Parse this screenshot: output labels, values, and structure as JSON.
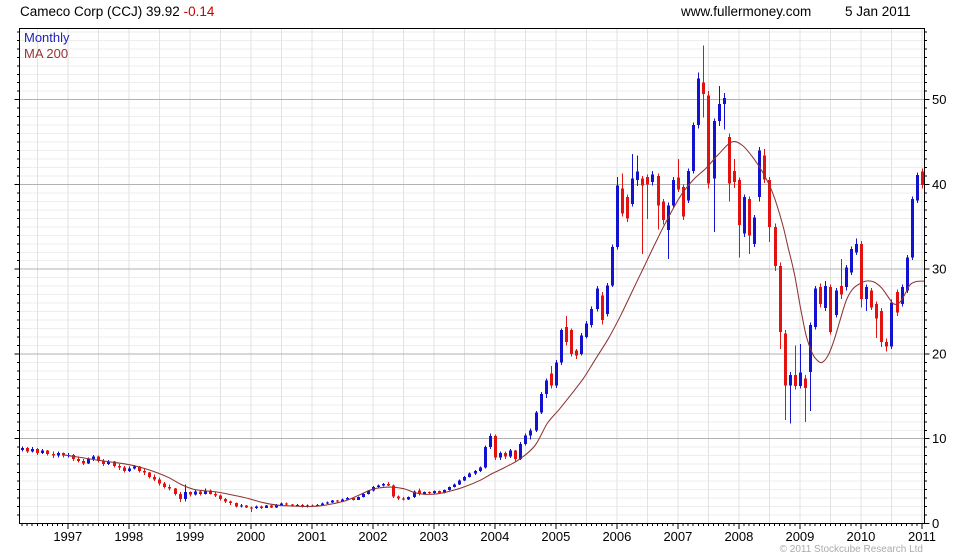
{
  "header": {
    "title": "Cameco Corp (CCJ) 39.92",
    "change": "-0.14",
    "site": "www.fullermoney.com",
    "date": "5 Jan 2011"
  },
  "legend": {
    "series1": "Monthly",
    "series2": "MA 200"
  },
  "footer": {
    "copyright": "© 2011 Stockcube Research Ltd"
  },
  "colors": {
    "up": "#1212d0",
    "down": "#e41111",
    "ma": "#8d3535",
    "grid_minor": "#ededed",
    "grid_vert": "#e2e2e2",
    "grid_major": "#b2b2b2",
    "border": "#000000",
    "change": "#cc0000",
    "text": "#000000",
    "copyright": "#ababab"
  },
  "chart_data": {
    "type": "candlestick",
    "title": "Cameco Corp (CCJ)",
    "timeframe": "Monthly",
    "overlay": "MA 200",
    "last_price": 39.92,
    "change": -0.14,
    "date": "5 Jan 2011",
    "start_month": "1996-04",
    "end_month": "2011-01",
    "ylim": [
      0,
      58.4
    ],
    "yticks": [
      0,
      10,
      20,
      30,
      40,
      50
    ],
    "xticks_years": [
      1997,
      1998,
      1999,
      2000,
      2001,
      2002,
      2003,
      2004,
      2005,
      2006,
      2007,
      2008,
      2009,
      2010,
      2011
    ],
    "grid": {
      "minor_h_step": 1,
      "major_h_step": 10,
      "vertical_every_months": 6
    },
    "ohlc": [
      [
        8.7,
        9.1,
        8.5,
        8.9
      ],
      [
        8.9,
        9.0,
        8.3,
        8.5
      ],
      [
        8.5,
        9.0,
        8.4,
        8.8
      ],
      [
        8.8,
        8.9,
        8.1,
        8.3
      ],
      [
        8.3,
        8.8,
        8.2,
        8.6
      ],
      [
        8.6,
        8.7,
        8.0,
        8.2
      ],
      [
        8.2,
        8.5,
        7.7,
        8.0
      ],
      [
        8.0,
        8.5,
        7.8,
        8.3
      ],
      [
        8.3,
        8.4,
        7.8,
        8.0
      ],
      [
        8.0,
        8.3,
        7.8,
        8.1
      ],
      [
        8.1,
        8.2,
        7.4,
        7.6
      ],
      [
        7.6,
        7.9,
        7.2,
        7.4
      ],
      [
        7.4,
        7.6,
        6.9,
        7.1
      ],
      [
        7.1,
        7.8,
        7.0,
        7.6
      ],
      [
        7.6,
        8.1,
        7.4,
        7.9
      ],
      [
        7.9,
        8.0,
        7.2,
        7.4
      ],
      [
        7.4,
        7.6,
        6.8,
        7.0
      ],
      [
        7.0,
        7.5,
        6.9,
        7.3
      ],
      [
        7.3,
        7.4,
        6.6,
        6.8
      ],
      [
        6.8,
        7.0,
        6.3,
        6.6
      ],
      [
        6.6,
        6.8,
        6.0,
        6.2
      ],
      [
        6.2,
        6.7,
        6.1,
        6.5
      ],
      [
        6.5,
        6.9,
        6.4,
        6.7
      ],
      [
        6.7,
        6.8,
        6.0,
        6.2
      ],
      [
        6.2,
        6.5,
        5.7,
        6.0
      ],
      [
        6.0,
        6.1,
        5.3,
        5.5
      ],
      [
        5.5,
        5.8,
        5.0,
        5.2
      ],
      [
        5.2,
        5.4,
        4.5,
        4.7
      ],
      [
        4.7,
        4.9,
        4.1,
        4.3
      ],
      [
        4.3,
        4.6,
        3.9,
        4.1
      ],
      [
        4.1,
        4.2,
        3.3,
        3.5
      ],
      [
        3.5,
        3.7,
        2.55,
        2.9
      ],
      [
        2.9,
        4.6,
        2.6,
        3.7
      ],
      [
        3.7,
        3.8,
        3.2,
        3.4
      ],
      [
        3.4,
        4.0,
        3.3,
        3.8
      ],
      [
        3.8,
        3.9,
        3.3,
        3.5
      ],
      [
        3.5,
        4.1,
        3.4,
        3.9
      ],
      [
        3.9,
        4.0,
        3.4,
        3.5
      ],
      [
        3.5,
        3.7,
        3.1,
        3.3
      ],
      [
        3.3,
        3.4,
        2.7,
        2.9
      ],
      [
        2.9,
        3.0,
        2.4,
        2.6
      ],
      [
        2.6,
        2.7,
        2.2,
        2.4
      ],
      [
        2.4,
        2.5,
        1.9,
        2.0
      ],
      [
        2.0,
        2.3,
        1.9,
        2.1
      ],
      [
        2.1,
        2.2,
        1.8,
        1.9
      ],
      [
        1.9,
        2.0,
        1.35,
        1.8
      ],
      [
        1.8,
        2.1,
        1.7,
        2.0
      ],
      [
        2.0,
        2.1,
        1.7,
        1.85
      ],
      [
        1.85,
        2.2,
        1.8,
        2.1
      ],
      [
        2.1,
        2.2,
        1.8,
        1.9
      ],
      [
        1.9,
        2.3,
        1.8,
        2.2
      ],
      [
        2.2,
        2.5,
        2.1,
        2.35
      ],
      [
        2.35,
        2.5,
        2.1,
        2.25
      ],
      [
        2.25,
        2.3,
        2.0,
        2.1
      ],
      [
        2.1,
        2.3,
        2.0,
        2.2
      ],
      [
        2.2,
        2.3,
        1.9,
        2.0
      ],
      [
        2.0,
        2.25,
        1.9,
        2.15
      ],
      [
        2.15,
        2.25,
        2.0,
        2.1
      ],
      [
        2.1,
        2.3,
        2.0,
        2.2
      ],
      [
        2.2,
        2.45,
        2.1,
        2.35
      ],
      [
        2.35,
        2.6,
        2.3,
        2.5
      ],
      [
        2.5,
        2.8,
        2.4,
        2.7
      ],
      [
        2.7,
        2.75,
        2.5,
        2.6
      ],
      [
        2.6,
        2.95,
        2.55,
        2.85
      ],
      [
        2.85,
        3.1,
        2.75,
        3.0
      ],
      [
        3.0,
        3.05,
        2.7,
        2.8
      ],
      [
        2.8,
        3.2,
        2.75,
        3.1
      ],
      [
        3.1,
        3.6,
        3.05,
        3.5
      ],
      [
        3.5,
        3.95,
        3.45,
        3.9
      ],
      [
        3.9,
        4.4,
        3.8,
        4.3
      ],
      [
        4.3,
        4.6,
        4.1,
        4.5
      ],
      [
        4.5,
        4.75,
        4.35,
        4.65
      ],
      [
        4.65,
        4.9,
        4.4,
        4.5
      ],
      [
        4.5,
        4.6,
        3.0,
        3.2
      ],
      [
        3.2,
        3.3,
        2.8,
        2.95
      ],
      [
        2.95,
        3.1,
        2.7,
        2.85
      ],
      [
        2.85,
        3.2,
        2.8,
        3.1
      ],
      [
        3.1,
        3.9,
        3.0,
        3.8
      ],
      [
        3.9,
        4.1,
        3.3,
        3.5
      ],
      [
        3.5,
        3.8,
        3.4,
        3.7
      ],
      [
        3.7,
        3.8,
        3.5,
        3.6
      ],
      [
        3.6,
        3.9,
        3.55,
        3.85
      ],
      [
        3.85,
        3.9,
        3.5,
        3.6
      ],
      [
        3.6,
        4.0,
        3.55,
        3.95
      ],
      [
        3.95,
        4.35,
        3.9,
        4.3
      ],
      [
        4.3,
        4.7,
        4.25,
        4.6
      ],
      [
        4.6,
        5.2,
        4.55,
        5.1
      ],
      [
        5.1,
        5.6,
        5.0,
        5.5
      ],
      [
        5.5,
        6.0,
        5.4,
        5.9
      ],
      [
        5.9,
        6.3,
        5.7,
        6.2
      ],
      [
        6.2,
        6.7,
        6.1,
        6.6
      ],
      [
        6.6,
        9.2,
        6.5,
        9.0
      ],
      [
        9.0,
        10.6,
        8.8,
        10.3
      ],
      [
        10.3,
        10.5,
        7.5,
        7.8
      ],
      [
        7.8,
        8.5,
        7.5,
        8.3
      ],
      [
        8.3,
        8.5,
        7.6,
        7.9
      ],
      [
        7.9,
        8.8,
        7.7,
        8.6
      ],
      [
        8.6,
        8.7,
        7.3,
        7.6
      ],
      [
        7.6,
        9.6,
        7.5,
        9.4
      ],
      [
        9.4,
        10.6,
        9.2,
        10.4
      ],
      [
        10.4,
        11.2,
        9.9,
        11.0
      ],
      [
        11.0,
        13.3,
        10.8,
        13.1
      ],
      [
        13.1,
        15.5,
        12.9,
        15.3
      ],
      [
        15.3,
        17.1,
        14.8,
        16.9
      ],
      [
        17.7,
        18.6,
        15.9,
        16.3
      ],
      [
        16.3,
        19.3,
        16.0,
        19.0
      ],
      [
        19.0,
        23.0,
        18.7,
        22.8
      ],
      [
        23.2,
        24.5,
        21.0,
        21.4
      ],
      [
        22.8,
        23.0,
        19.7,
        20.0
      ],
      [
        20.4,
        20.6,
        19.4,
        19.8
      ],
      [
        20.0,
        22.5,
        19.8,
        22.2
      ],
      [
        22.0,
        23.9,
        21.8,
        23.6
      ],
      [
        23.4,
        25.6,
        23.1,
        25.3
      ],
      [
        25.3,
        28.0,
        25.0,
        27.7
      ],
      [
        26.9,
        27.3,
        23.5,
        24.0
      ],
      [
        24.7,
        28.4,
        24.4,
        28.1
      ],
      [
        28.1,
        32.9,
        27.9,
        32.6
      ],
      [
        32.6,
        40.9,
        32.3,
        39.9
      ],
      [
        39.5,
        41.3,
        36.2,
        36.6
      ],
      [
        38.5,
        38.8,
        35.6,
        36.0
      ],
      [
        37.7,
        43.6,
        37.4,
        40.7
      ],
      [
        40.5,
        43.4,
        39.8,
        41.5
      ],
      [
        40.7,
        41.0,
        31.8,
        39.9
      ],
      [
        40.9,
        41.2,
        35.9,
        40.0
      ],
      [
        40.3,
        41.6,
        39.9,
        41.2
      ],
      [
        41.0,
        41.3,
        34.7,
        37.5
      ],
      [
        38.0,
        38.3,
        35.3,
        35.8
      ],
      [
        34.6,
        37.9,
        31.2,
        37.5
      ],
      [
        37.5,
        40.9,
        37.2,
        40.5
      ],
      [
        40.8,
        43.0,
        39.1,
        39.4
      ],
      [
        39.7,
        40.0,
        35.8,
        36.2
      ],
      [
        38.1,
        41.9,
        37.8,
        41.6
      ],
      [
        41.6,
        47.3,
        41.3,
        47.0
      ],
      [
        47.0,
        53.2,
        46.6,
        52.5
      ],
      [
        52.0,
        56.4,
        47.9,
        50.7
      ],
      [
        50.5,
        51.0,
        39.5,
        40.1
      ],
      [
        40.7,
        47.8,
        34.4,
        47.5
      ],
      [
        47.5,
        51.6,
        46.9,
        49.5
      ],
      [
        49.5,
        50.8,
        46.5,
        50.2
      ],
      [
        45.6,
        46.0,
        38.0,
        40.1
      ],
      [
        41.6,
        43.0,
        39.6,
        40.3
      ],
      [
        40.5,
        40.8,
        31.4,
        35.2
      ],
      [
        34.2,
        38.8,
        33.8,
        38.5
      ],
      [
        38.3,
        38.6,
        31.8,
        34.0
      ],
      [
        33.0,
        36.4,
        32.6,
        36.1
      ],
      [
        38.5,
        44.4,
        38.0,
        44.0
      ],
      [
        43.4,
        44.2,
        40.2,
        40.6
      ],
      [
        40.5,
        40.9,
        33.2,
        35.0
      ],
      [
        35.0,
        35.4,
        29.8,
        30.4
      ],
      [
        30.4,
        30.8,
        20.6,
        22.6
      ],
      [
        22.4,
        22.8,
        12.2,
        16.3
      ],
      [
        16.3,
        17.9,
        11.8,
        17.5
      ],
      [
        17.5,
        21.0,
        15.8,
        16.2
      ],
      [
        16.2,
        21.2,
        15.9,
        17.8
      ],
      [
        17.1,
        17.5,
        12.0,
        16.0
      ],
      [
        17.9,
        23.7,
        13.3,
        23.4
      ],
      [
        23.2,
        28.0,
        22.9,
        27.7
      ],
      [
        27.9,
        28.3,
        25.5,
        25.9
      ],
      [
        25.4,
        28.6,
        25.1,
        28.0
      ],
      [
        27.9,
        28.2,
        22.3,
        22.6
      ],
      [
        24.6,
        27.8,
        24.3,
        27.5
      ],
      [
        28.0,
        31.2,
        26.5,
        27.0
      ],
      [
        27.9,
        30.5,
        27.5,
        30.2
      ],
      [
        29.6,
        32.7,
        29.3,
        32.4
      ],
      [
        32.0,
        33.6,
        31.7,
        33.0
      ],
      [
        33.0,
        33.3,
        25.5,
        26.5
      ],
      [
        26.5,
        28.2,
        25.1,
        27.9
      ],
      [
        27.5,
        27.8,
        25.2,
        25.5
      ],
      [
        25.9,
        26.2,
        21.9,
        24.2
      ],
      [
        25.1,
        25.4,
        20.8,
        21.4
      ],
      [
        21.4,
        21.8,
        20.3,
        20.9
      ],
      [
        20.9,
        26.4,
        20.6,
        26.1
      ],
      [
        27.3,
        27.6,
        24.5,
        24.9
      ],
      [
        25.9,
        28.2,
        25.6,
        27.9
      ],
      [
        27.5,
        31.7,
        27.2,
        31.4
      ],
      [
        31.4,
        38.6,
        31.1,
        38.3
      ],
      [
        38.1,
        41.4,
        37.8,
        41.1
      ],
      [
        41.5,
        41.9,
        39.5,
        39.92
      ]
    ],
    "ma_points": [
      [
        1996.96,
        8.1
      ],
      [
        1997.2,
        7.85
      ],
      [
        1997.5,
        7.5
      ],
      [
        1997.75,
        7.25
      ],
      [
        1998.0,
        7.0
      ],
      [
        1998.25,
        6.6
      ],
      [
        1998.5,
        6.0
      ],
      [
        1998.7,
        5.4
      ],
      [
        1998.9,
        4.6
      ],
      [
        1999.1,
        4.05
      ],
      [
        1999.3,
        3.85
      ],
      [
        1999.5,
        3.7
      ],
      [
        1999.75,
        3.35
      ],
      [
        2000.0,
        2.95
      ],
      [
        2000.25,
        2.45
      ],
      [
        2000.5,
        2.15
      ],
      [
        2000.75,
        2.05
      ],
      [
        2001.0,
        2.0
      ],
      [
        2001.2,
        2.1
      ],
      [
        2001.4,
        2.35
      ],
      [
        2001.6,
        2.7
      ],
      [
        2001.8,
        3.3
      ],
      [
        2002.0,
        3.95
      ],
      [
        2002.15,
        4.2
      ],
      [
        2002.35,
        4.3
      ],
      [
        2002.55,
        4.1
      ],
      [
        2002.75,
        3.6
      ],
      [
        2002.9,
        3.45
      ],
      [
        2003.1,
        3.5
      ],
      [
        2003.3,
        3.8
      ],
      [
        2003.55,
        4.35
      ],
      [
        2003.8,
        5.1
      ],
      [
        2004.0,
        5.9
      ],
      [
        2004.2,
        6.6
      ],
      [
        2004.45,
        7.6
      ],
      [
        2004.7,
        9.2
      ],
      [
        2004.9,
        11.8
      ],
      [
        2005.1,
        13.5
      ],
      [
        2005.3,
        15.3
      ],
      [
        2005.5,
        17.2
      ],
      [
        2005.7,
        19.5
      ],
      [
        2005.9,
        21.8
      ],
      [
        2006.1,
        24.5
      ],
      [
        2006.3,
        27.5
      ],
      [
        2006.5,
        30.5
      ],
      [
        2006.7,
        33.5
      ],
      [
        2006.9,
        36.3
      ],
      [
        2007.1,
        38.8
      ],
      [
        2007.3,
        40.6
      ],
      [
        2007.5,
        41.9
      ],
      [
        2007.7,
        43.5
      ],
      [
        2007.92,
        45.0
      ],
      [
        2008.1,
        44.6
      ],
      [
        2008.3,
        42.9
      ],
      [
        2008.45,
        41.2
      ],
      [
        2008.6,
        38.9
      ],
      [
        2008.75,
        35.5
      ],
      [
        2008.85,
        32.5
      ],
      [
        2008.95,
        29.5
      ],
      [
        2009.05,
        25.5
      ],
      [
        2009.15,
        22.0
      ],
      [
        2009.25,
        20.0
      ],
      [
        2009.32,
        19.3
      ],
      [
        2009.4,
        19.0
      ],
      [
        2009.5,
        19.8
      ],
      [
        2009.6,
        21.6
      ],
      [
        2009.7,
        24.0
      ],
      [
        2009.8,
        26.3
      ],
      [
        2009.9,
        27.6
      ],
      [
        2010.0,
        28.2
      ],
      [
        2010.12,
        28.6
      ],
      [
        2010.25,
        28.5
      ],
      [
        2010.38,
        27.8
      ],
      [
        2010.5,
        26.6
      ],
      [
        2010.58,
        25.9
      ],
      [
        2010.68,
        26.1
      ],
      [
        2010.78,
        27.3
      ],
      [
        2010.85,
        28.2
      ],
      [
        2010.95,
        28.55
      ],
      [
        2011.08,
        28.6
      ]
    ]
  }
}
